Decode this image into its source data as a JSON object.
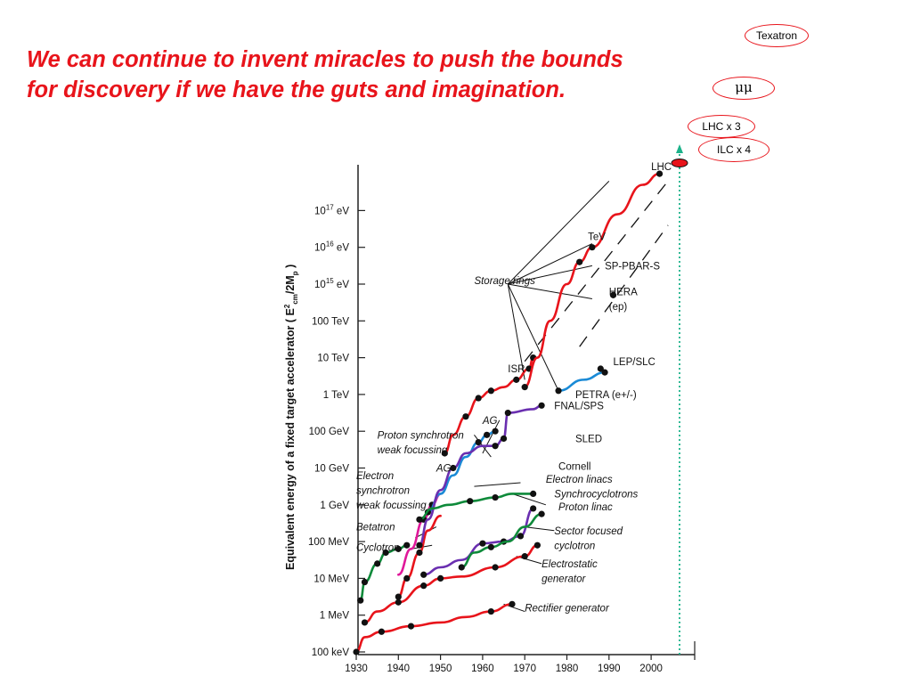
{
  "headline": {
    "line1": "We can continue to invent miracles to push the bounds",
    "line2": "for discovery if we have the guts and imagination."
  },
  "tags": {
    "texatron": "Texatron",
    "mumu": "μμ",
    "lhc_x3": "LHC x 3",
    "ilc_x4": "ILC x 4"
  },
  "colors": {
    "headline": "#e8141b",
    "tag_border": "#e8141b",
    "proton_synchrotron": "#e8141b",
    "ag_electron": "#1a8ad6",
    "electron_linac": "#6a2fb0",
    "sector_focused": "#0e8a3a",
    "betatron": "#e0189a",
    "vertical_marker": "#1cb28a"
  },
  "chart_data": {
    "type": "line",
    "ylabel": "Equivalent energy of a fixed target accelerator ( E",
    "ylabel_sub": "cm",
    "ylabel_sup": "2",
    "ylabel_tail": "/2M",
    "ylabel_tail_sub": "p",
    "ylabel_close": " )",
    "x_ticks": [
      "1930",
      "1940",
      "1950",
      "1960",
      "1970",
      "1980",
      "1990",
      "2000"
    ],
    "x_tick_values": [
      1930,
      1940,
      1950,
      1960,
      1970,
      1980,
      1990,
      2000
    ],
    "xlim": [
      1930,
      2010
    ],
    "y_log_min": 0,
    "y_ticks": [
      {
        "mant": "100 keV",
        "exp": ""
      },
      {
        "mant": "1 MeV",
        "exp": ""
      },
      {
        "mant": "10 MeV",
        "exp": ""
      },
      {
        "mant": "100 MeV",
        "exp": ""
      },
      {
        "mant": "1 GeV",
        "exp": ""
      },
      {
        "mant": "10 GeV",
        "exp": ""
      },
      {
        "mant": "100 GeV",
        "exp": ""
      },
      {
        "mant": "1 TeV",
        "exp": ""
      },
      {
        "mant": "10 TeV",
        "exp": ""
      },
      {
        "mant": "100 TeV",
        "exp": ""
      },
      {
        "mant": "10",
        "exp": "15",
        "unit": " eV"
      },
      {
        "mant": "10",
        "exp": "16",
        "unit": " eV"
      },
      {
        "mant": "10",
        "exp": "17",
        "unit": " eV"
      }
    ],
    "series": [
      {
        "name": "Rectifier generator",
        "color": "#e8141b",
        "x": [
          1930,
          1932,
          1936,
          1943,
          1950,
          1956,
          1962,
          1967
        ],
        "y": [
          0,
          0.4,
          0.55,
          0.7,
          0.8,
          0.95,
          1.1,
          1.3
        ],
        "marks": [
          0,
          2,
          3,
          6,
          7
        ]
      },
      {
        "name": "Electrostatic generator",
        "color": "#e8141b",
        "x": [
          1932,
          1935,
          1940,
          1946,
          1950,
          1955,
          1963,
          1970,
          1973
        ],
        "y": [
          0.8,
          1.1,
          1.35,
          1.8,
          2.0,
          2.05,
          2.3,
          2.6,
          2.9
        ],
        "marks": [
          0,
          2,
          3,
          4,
          6,
          7,
          8
        ]
      },
      {
        "name": "Cyclotron",
        "color": "#0e8a3a",
        "x": [
          1931,
          1932,
          1935,
          1937,
          1940,
          1942
        ],
        "y": [
          1.4,
          1.9,
          2.4,
          2.7,
          2.8,
          2.9
        ],
        "marks": [
          0,
          1,
          2,
          3,
          4,
          5
        ]
      },
      {
        "name": "Betatron",
        "color": "#e8141b",
        "x": [
          1940,
          1942,
          1945,
          1947,
          1950
        ],
        "y": [
          1.5,
          2.0,
          2.7,
          3.3,
          3.7
        ],
        "marks": [
          0,
          1,
          2
        ]
      },
      {
        "name": "Electron synchrotron",
        "color": "#e0189a",
        "x": [
          1940,
          1943,
          1946,
          1948,
          1950
        ],
        "y": [
          2.1,
          2.8,
          3.6,
          4.0,
          4.3
        ],
        "marks": [
          2,
          3
        ]
      },
      {
        "name": "Proton synchrotron",
        "color": "#e8141b",
        "x": [
          1951,
          1953,
          1956,
          1959,
          1962,
          1965,
          1968,
          1971,
          1972
        ],
        "y": [
          5.4,
          5.9,
          6.4,
          6.9,
          7.1,
          7.2,
          7.4,
          7.7,
          8.0
        ],
        "marks": [
          0,
          2,
          3,
          4,
          6,
          7,
          8
        ]
      },
      {
        "name": "AG electron",
        "color": "#1a8ad6",
        "x": [
          1947,
          1950,
          1953,
          1956,
          1959,
          1961,
          1963
        ],
        "y": [
          3.8,
          4.3,
          4.8,
          5.3,
          5.7,
          5.9,
          6.0
        ],
        "marks": [
          0,
          4,
          5,
          6
        ]
      },
      {
        "name": "Electron linac",
        "color": "#6a2fb0",
        "x": [
          1945,
          1947,
          1950,
          1953,
          1956,
          1960,
          1963,
          1965,
          1966,
          1972,
          1974
        ],
        "y": [
          2.9,
          3.6,
          4.4,
          5.0,
          5.4,
          5.6,
          5.6,
          5.8,
          6.5,
          6.6,
          6.7
        ],
        "marks": [
          0,
          3,
          6,
          7,
          8,
          10
        ]
      },
      {
        "name": "Synchrocyclotron",
        "color": "#0e8a3a",
        "x": [
          1945,
          1948,
          1952,
          1957,
          1963,
          1967,
          1972
        ],
        "y": [
          3.6,
          3.9,
          4.0,
          4.1,
          4.2,
          4.3,
          4.3
        ],
        "marks": [
          0,
          3,
          4,
          6
        ]
      },
      {
        "name": "Proton linac",
        "color": "#6a2fb0",
        "x": [
          1946,
          1950,
          1955,
          1960,
          1965,
          1969,
          1972
        ],
        "y": [
          2.1,
          2.3,
          2.5,
          2.95,
          3.0,
          3.15,
          3.9
        ],
        "marks": [
          0,
          3,
          4,
          5,
          6
        ]
      },
      {
        "name": "Sector focused cyclotron",
        "color": "#0e8a3a",
        "x": [
          1955,
          1958,
          1962,
          1966,
          1970,
          1974
        ],
        "y": [
          2.3,
          2.7,
          2.85,
          3.0,
          3.4,
          3.75
        ],
        "marks": [
          0,
          2,
          5
        ]
      },
      {
        "name": "Storage rings",
        "color": "#e8141b",
        "x": [
          1970,
          1973,
          1976,
          1980,
          1983,
          1986,
          1992,
          1998,
          2002
        ],
        "y": [
          7.2,
          8.0,
          9.0,
          10.0,
          10.6,
          11.0,
          11.9,
          12.7,
          13.0
        ],
        "marks": [
          0,
          4,
          5,
          8
        ]
      },
      {
        "name": "LEP/SLC",
        "color": "#1a8ad6",
        "x": [
          1978,
          1984,
          1989
        ],
        "y": [
          7.1,
          7.4,
          7.6
        ],
        "marks": [
          0,
          2
        ]
      }
    ],
    "extra_points": [
      {
        "x": 1991,
        "y": 9.7
      },
      {
        "x": 1988,
        "y": 7.7
      }
    ],
    "labels": [
      {
        "text": "LHC",
        "x": 2000,
        "y": 13.1
      },
      {
        "text": "TeV",
        "x": 1985,
        "y": 11.2
      },
      {
        "text": "SP-PBAR-S",
        "x": 1989,
        "y": 10.4
      },
      {
        "text": "Storage rings",
        "x": 1958,
        "y": 10.0,
        "italic": true
      },
      {
        "text": "HERA",
        "x": 1990,
        "y": 9.7
      },
      {
        "text": "(ep)",
        "x": 1990,
        "y": 9.3
      },
      {
        "text": "ISR",
        "x": 1966,
        "y": 7.6
      },
      {
        "text": "LEP/SLC",
        "x": 1991,
        "y": 7.8
      },
      {
        "text": "PETRA  (e+/-)",
        "x": 1982,
        "y": 6.9
      },
      {
        "text": "FNAL/SPS",
        "x": 1977,
        "y": 6.6
      },
      {
        "text": "AG",
        "x": 1960,
        "y": 6.2,
        "italic": true
      },
      {
        "text": "Proton synchrotron",
        "x": 1935,
        "y": 5.8,
        "italic": true
      },
      {
        "text": "weak focussing",
        "x": 1935,
        "y": 5.4,
        "italic": true
      },
      {
        "text": "SLED",
        "x": 1982,
        "y": 5.7
      },
      {
        "text": "Cornell",
        "x": 1978,
        "y": 4.95
      },
      {
        "text": "AG",
        "x": 1949,
        "y": 4.9,
        "italic": true
      },
      {
        "text": "Electron",
        "x": 1930,
        "y": 4.7,
        "italic": true
      },
      {
        "text": "synchrotron",
        "x": 1930,
        "y": 4.3,
        "italic": true
      },
      {
        "text": "weak focussing",
        "x": 1930,
        "y": 3.9,
        "italic": true
      },
      {
        "text": "Electron linacs",
        "x": 1975,
        "y": 4.6,
        "italic": true
      },
      {
        "text": "Synchrocyclotrons",
        "x": 1977,
        "y": 4.2,
        "italic": true
      },
      {
        "text": "Proton linac",
        "x": 1978,
        "y": 3.85,
        "italic": true
      },
      {
        "text": "Betatron",
        "x": 1930,
        "y": 3.3,
        "italic": true
      },
      {
        "text": "Cyclotron",
        "x": 1930,
        "y": 2.75,
        "italic": true
      },
      {
        "text": "Sector focused",
        "x": 1977,
        "y": 3.2,
        "italic": true
      },
      {
        "text": "cyclotron",
        "x": 1977,
        "y": 2.8,
        "italic": true
      },
      {
        "text": "Electrostatic",
        "x": 1974,
        "y": 2.3,
        "italic": true
      },
      {
        "text": "generator",
        "x": 1974,
        "y": 1.9,
        "italic": true
      },
      {
        "text": "Rectifier generator",
        "x": 1970,
        "y": 1.1,
        "italic": true
      }
    ],
    "grid": false,
    "scale": "log"
  }
}
